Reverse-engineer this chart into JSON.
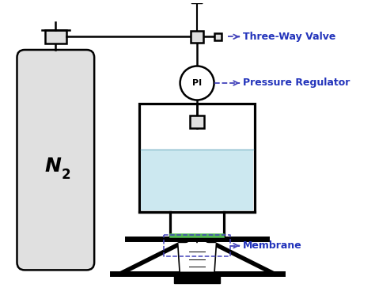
{
  "background_color": "#ffffff",
  "line_color": "#000000",
  "dashed_color": "#4444bb",
  "water_color": "#cce8f0",
  "membrane_color": "#55bb55",
  "label_three_way_valve": "Three-Way Valve",
  "label_pressure_regulator": "Pressure Regulator",
  "label_membrane": "Membrane",
  "label_n2": "N",
  "label_n2_sub": "2",
  "label_pi": "PI",
  "cyl_gray": "#e0e0e0",
  "dark_gray": "#555555"
}
